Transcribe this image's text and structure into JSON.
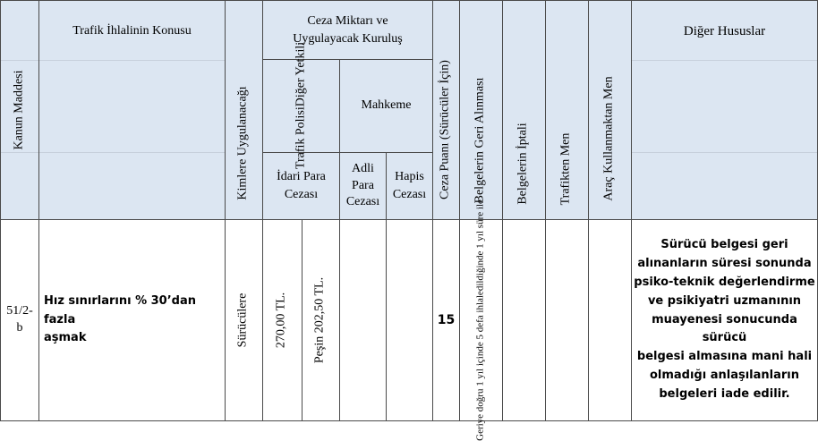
{
  "header": {
    "kanun_maddesi": "Kanun Maddesi",
    "ihlal_konusu": "Trafik İhlalinin Konusu",
    "kimlere": "Kimlere Uygulanacağı",
    "ceza_miktari_line1": "Ceza Miktarı ve",
    "ceza_miktari_line2": "Uygulayacak Kuruluş",
    "trafik_polisi_line1": "Trafik Polisi",
    "trafik_polisi_line2": "Diğer Yetkili",
    "mahkeme": "Mahkeme",
    "idari_para_line1": "İdari Para",
    "idari_para_line2": "Cezası",
    "adli_line1": "Adli",
    "adli_line2": "Para",
    "adli_line3": "Cezası",
    "hapis_line1": "Hapis",
    "hapis_line2": "Cezası",
    "ceza_puani": "Ceza Puanı (Sürücüler İçin)",
    "belge_geri": "Belgelerin Geri Alınması",
    "belge_iptal": "Belgelerin İptali",
    "trafikten_men": "Trafikten Men",
    "arac_men": "Araç Kullanmaktan Men",
    "diger": "Diğer Hususlar"
  },
  "row": {
    "madde_line1": "51/2-",
    "madde_line2": "b",
    "konu_line1": "Hız sınırlarını % 30’dan fazla",
    "konu_line2": "aşmak",
    "kimlere": "Sürücülere",
    "idari_tam": "270,00 TL.",
    "idari_pesin": "Peşin 202,50 TL.",
    "ceza_puani": "15",
    "geri_alma_line1": "Geriye doğru 1 yıl içinde 5 defa ihlal",
    "geri_alma_line2": "edildiğinde 1 yıl süre ile",
    "diger_lines": [
      "Sürücü belgesi geri",
      "alınanların süresi sonunda",
      "psiko-teknik değerlendirme",
      "ve psikiyatri uzmanının",
      "muayenesi sonucunda sürücü",
      "belgesi almasına mani hali",
      "olmadığı anlaşılanların",
      "belgeleri iade edilir."
    ]
  }
}
